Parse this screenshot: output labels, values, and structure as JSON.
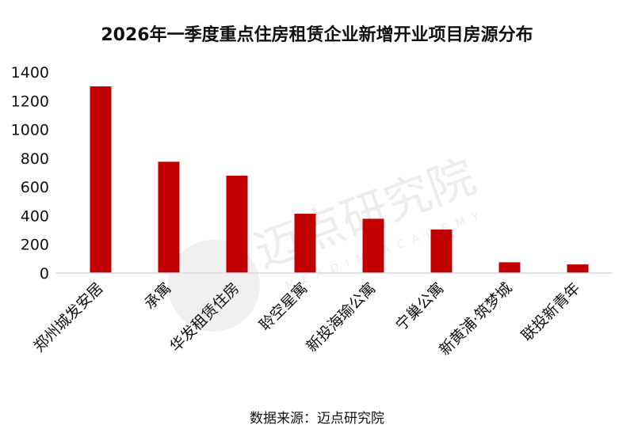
{
  "chart_data": {
    "type": "bar",
    "title": "2026年一季度重点住房租赁企业新增开业项目房源分布",
    "source": "数据来源：迈点研究院",
    "categories": [
      "郑州城发安居",
      "承寓",
      "华发租赁住房",
      "聆空星寓",
      "新投海瑜公寓",
      "宁巢公寓",
      "新黄浦·筑梦城",
      "联投新青年"
    ],
    "values": [
      1300,
      775,
      678,
      413,
      378,
      303,
      75,
      60
    ],
    "yticks": [
      "0",
      "200",
      "400",
      "600",
      "800",
      "1000",
      "1200",
      "1400"
    ],
    "ylim": [
      0,
      1400
    ],
    "grid": false,
    "bar_color": "#c00000"
  },
  "watermark": {
    "brand": "迈点研究院",
    "sub": "MEADIN ACADEMY"
  }
}
